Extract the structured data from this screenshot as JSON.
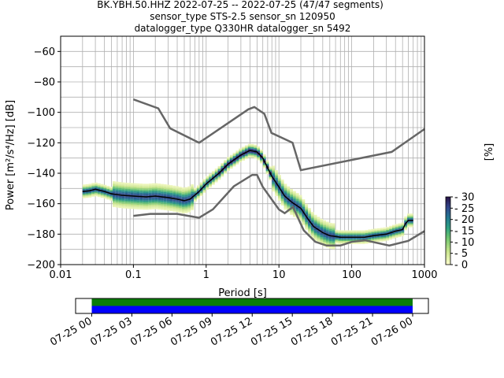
{
  "title_lines": [
    "BK.YBH.50.HHZ   2022-07-25 -- 2022-07-25  (47/47 segments)",
    "sensor_type STS-2.5 sensor_sn 120950",
    "datalogger_type Q330HR datalogger_sn 5492"
  ],
  "chart_data": [
    {
      "type": "heatmap",
      "title": "BK.YBH.50.HHZ   2022-07-25 -- 2022-07-25  (47/47 segments)",
      "subtitle": [
        "sensor_type STS-2.5 sensor_sn 120950",
        "datalogger_type Q330HR datalogger_sn 5492"
      ],
      "xlabel": "Period [s]",
      "ylabel": "Power [m²/s⁴/Hz] [dB]",
      "xscale": "log",
      "xlim": [
        0.01,
        1000
      ],
      "ylim": [
        -200,
        -50
      ],
      "x_ticks": [
        "0.01",
        "0.1",
        "1",
        "10",
        "100",
        "1000"
      ],
      "y_ticks": [
        "−200",
        "−180",
        "−160",
        "−140",
        "−120",
        "−100",
        "−80",
        "−60"
      ],
      "grid": true,
      "colorbar": {
        "label": "[%]",
        "range": [
          0,
          30
        ],
        "ticks": [
          "0",
          "5",
          "10",
          "15",
          "20",
          "25",
          "30"
        ]
      },
      "mean_curve": [
        [
          0.02,
          -152
        ],
        [
          0.025,
          -151.5
        ],
        [
          0.03,
          -150.5
        ],
        [
          0.04,
          -152
        ],
        [
          0.05,
          -153.5
        ],
        [
          0.07,
          -154.5
        ],
        [
          0.1,
          -155
        ],
        [
          0.15,
          -155.5
        ],
        [
          0.2,
          -155
        ],
        [
          0.3,
          -156
        ],
        [
          0.4,
          -157
        ],
        [
          0.5,
          -158
        ],
        [
          0.6,
          -157
        ],
        [
          0.8,
          -152
        ],
        [
          1,
          -147
        ],
        [
          1.5,
          -140
        ],
        [
          2,
          -134
        ],
        [
          3,
          -128
        ],
        [
          4,
          -125
        ],
        [
          5,
          -126
        ],
        [
          6,
          -130
        ],
        [
          8,
          -142
        ],
        [
          10,
          -149
        ],
        [
          12,
          -155
        ],
        [
          15,
          -159
        ],
        [
          20,
          -163
        ],
        [
          25,
          -170
        ],
        [
          30,
          -175
        ],
        [
          40,
          -179
        ],
        [
          50,
          -181
        ],
        [
          70,
          -182
        ],
        [
          100,
          -182
        ],
        [
          150,
          -182
        ],
        [
          200,
          -181
        ],
        [
          300,
          -180
        ],
        [
          400,
          -178
        ],
        [
          500,
          -177
        ],
        [
          550,
          -173
        ],
        [
          600,
          -171
        ],
        [
          700,
          -171
        ]
      ],
      "nhnm": [
        [
          0.1,
          -91.5
        ],
        [
          0.22,
          -97.4
        ],
        [
          0.32,
          -110.5
        ],
        [
          0.8,
          -120
        ],
        [
          3.8,
          -98
        ],
        [
          4.6,
          -96.5
        ],
        [
          6.3,
          -101
        ],
        [
          7.9,
          -113.5
        ],
        [
          15.4,
          -120
        ],
        [
          20,
          -138
        ],
        [
          354.8,
          -126
        ],
        [
          1000,
          -111
        ]
      ],
      "nlnm": [
        [
          0.1,
          -168
        ],
        [
          0.17,
          -166.7
        ],
        [
          0.4,
          -166.7
        ],
        [
          0.8,
          -169.2
        ],
        [
          1.24,
          -163.7
        ],
        [
          2.4,
          -148.6
        ],
        [
          4.3,
          -141.1
        ],
        [
          5,
          -141.1
        ],
        [
          6,
          -149
        ],
        [
          10,
          -163.8
        ],
        [
          12,
          -166.2
        ],
        [
          15.6,
          -162.1
        ],
        [
          21.9,
          -177.5
        ],
        [
          31.6,
          -185
        ],
        [
          45,
          -187.5
        ],
        [
          70,
          -187.5
        ],
        [
          101,
          -185
        ],
        [
          154,
          -184
        ],
        [
          328,
          -187.5
        ],
        [
          600,
          -184.4
        ],
        [
          1000,
          -178
        ]
      ]
    },
    {
      "type": "bar",
      "title": "",
      "x_ticks": [
        "07-25 00",
        "07-25 03",
        "07-25 06",
        "07-25 09",
        "07-25 12",
        "07-25 15",
        "07-25 18",
        "07-25 21",
        "07-26 00"
      ],
      "coverage": [
        {
          "start_hour": 0,
          "end_hour": 24,
          "color": "#0a7d0a"
        },
        {
          "start_hour": 0,
          "end_hour": 24,
          "color": "#0000ff"
        }
      ]
    }
  ]
}
